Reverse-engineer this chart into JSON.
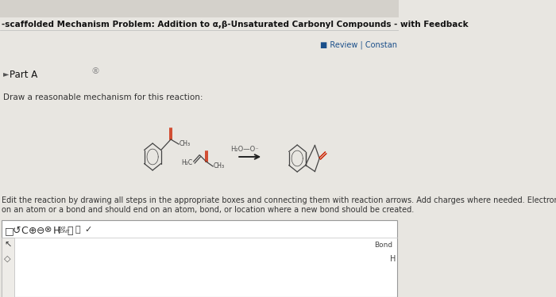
{
  "bg_color": "#e8e6e1",
  "content_bg": "#e8e6e1",
  "title": "-scaffolded Mechanism Problem: Addition to α,β-Unsaturated Carbonyl Compounds - with Feedback",
  "title_fontsize": 7.5,
  "title_color": "#111111",
  "title_bold": true,
  "review_text": "■ Review | Constan",
  "review_color": "#1a4f8a",
  "review_fontsize": 7.0,
  "part_a_text": "Part A",
  "part_a_fontsize": 8.5,
  "draw_text": "Draw a reasonable mechanism for this reaction:",
  "draw_fontsize": 7.5,
  "edit_text1": "Edit the reaction by drawing all steps in the appropriate boxes and connecting them with reaction arrows. Add charges where needed. Electron-flow ar",
  "edit_text2": "on an atom or a bond and should end on an atom, bond, or location where a new bond should be created.",
  "edit_fontsize": 7.0,
  "reaction_label": "H₂O—O⁻",
  "box_bg": "#ffffff",
  "box_border": "#999999",
  "toolbar_bg": "#f5f5f5",
  "struct_color": "#444444",
  "carbonyl_color": "#cc2200",
  "arrow_color": "#222222"
}
